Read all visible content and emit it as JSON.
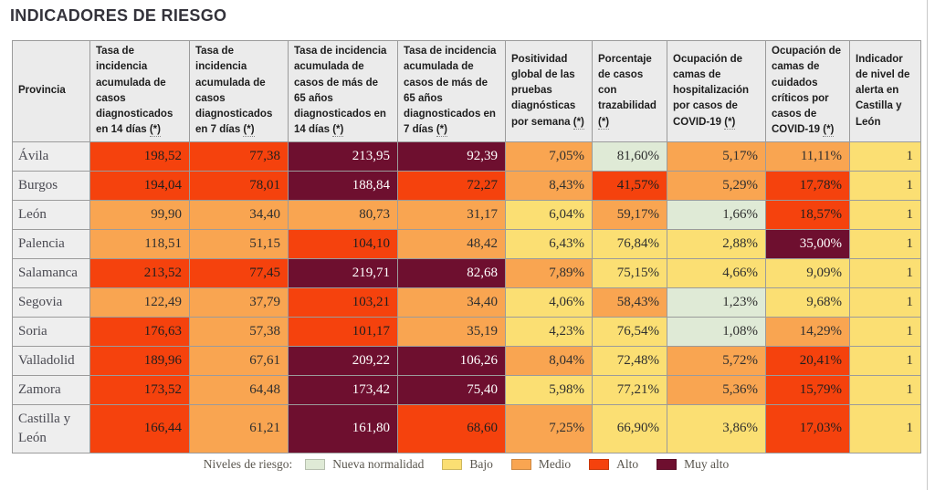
{
  "title": "INDICADORES DE RIESGO",
  "colors": {
    "nueva_normalidad": {
      "bg": "#dfead6",
      "text": "#2f2f2f"
    },
    "bajo": {
      "bg": "#fbdf73",
      "text": "#2f2f2f"
    },
    "medio": {
      "bg": "#f9a551",
      "text": "#2f2f2f"
    },
    "alto": {
      "bg": "#f5420d",
      "text": "#1f1f1f"
    },
    "muy_alto": {
      "bg": "#6e0f2f",
      "text": "#ffffff"
    }
  },
  "table": {
    "province_header": "Provincia",
    "columns": [
      {
        "label": "Tasa de incidencia acumulada de casos diagnosticados en 14 días",
        "star": "(*)"
      },
      {
        "label": "Tasa de incidencia acumulada de casos diagnosticados en 7 días",
        "star": "(*)"
      },
      {
        "label": "Tasa de incidencia acumulada de casos de más de 65 años diagnosticados en 14 días",
        "star": "(*)"
      },
      {
        "label": "Tasa de incidencia acumulada de casos de más de 65 años diagnosticados en 7 días",
        "star": "(*)"
      },
      {
        "label": "Positividad global de las pruebas diagnósticas por semana",
        "star": "(*)"
      },
      {
        "label": "Porcentaje de casos con trazabilidad",
        "star": "(*)"
      },
      {
        "label": "Ocupación de camas de hospitalización por casos de COVID-19",
        "star": "(*)"
      },
      {
        "label": "Ocupación de camas de cuidados críticos por casos de COVID-19",
        "star": "(*)"
      },
      {
        "label": "Indicador de nivel de alerta en Castilla y León",
        "star": ""
      }
    ],
    "rows": [
      {
        "province": "Ávila",
        "cells": [
          {
            "v": "198,52",
            "l": "alto"
          },
          {
            "v": "77,38",
            "l": "alto"
          },
          {
            "v": "213,95",
            "l": "muy_alto"
          },
          {
            "v": "92,39",
            "l": "muy_alto"
          },
          {
            "v": "7,05%",
            "l": "medio"
          },
          {
            "v": "81,60%",
            "l": "nueva_normalidad"
          },
          {
            "v": "5,17%",
            "l": "medio"
          },
          {
            "v": "11,11%",
            "l": "medio"
          },
          {
            "v": "1",
            "l": "bajo"
          }
        ]
      },
      {
        "province": "Burgos",
        "cells": [
          {
            "v": "194,04",
            "l": "alto"
          },
          {
            "v": "78,01",
            "l": "alto"
          },
          {
            "v": "188,84",
            "l": "muy_alto"
          },
          {
            "v": "72,27",
            "l": "alto"
          },
          {
            "v": "8,43%",
            "l": "medio"
          },
          {
            "v": "41,57%",
            "l": "alto"
          },
          {
            "v": "5,29%",
            "l": "medio"
          },
          {
            "v": "17,78%",
            "l": "alto"
          },
          {
            "v": "1",
            "l": "bajo"
          }
        ]
      },
      {
        "province": "León",
        "cells": [
          {
            "v": "99,90",
            "l": "medio"
          },
          {
            "v": "34,40",
            "l": "medio"
          },
          {
            "v": "80,73",
            "l": "medio"
          },
          {
            "v": "31,17",
            "l": "medio"
          },
          {
            "v": "6,04%",
            "l": "bajo"
          },
          {
            "v": "59,17%",
            "l": "medio"
          },
          {
            "v": "1,66%",
            "l": "nueva_normalidad"
          },
          {
            "v": "18,57%",
            "l": "alto"
          },
          {
            "v": "1",
            "l": "bajo"
          }
        ]
      },
      {
        "province": "Palencia",
        "cells": [
          {
            "v": "118,51",
            "l": "medio"
          },
          {
            "v": "51,15",
            "l": "medio"
          },
          {
            "v": "104,10",
            "l": "alto"
          },
          {
            "v": "48,42",
            "l": "medio"
          },
          {
            "v": "6,43%",
            "l": "bajo"
          },
          {
            "v": "76,84%",
            "l": "bajo"
          },
          {
            "v": "2,88%",
            "l": "bajo"
          },
          {
            "v": "35,00%",
            "l": "muy_alto"
          },
          {
            "v": "1",
            "l": "bajo"
          }
        ]
      },
      {
        "province": "Salamanca",
        "cells": [
          {
            "v": "213,52",
            "l": "alto"
          },
          {
            "v": "77,45",
            "l": "alto"
          },
          {
            "v": "219,71",
            "l": "muy_alto"
          },
          {
            "v": "82,68",
            "l": "muy_alto"
          },
          {
            "v": "7,89%",
            "l": "medio"
          },
          {
            "v": "75,15%",
            "l": "bajo"
          },
          {
            "v": "4,66%",
            "l": "bajo"
          },
          {
            "v": "9,09%",
            "l": "bajo"
          },
          {
            "v": "1",
            "l": "bajo"
          }
        ]
      },
      {
        "province": "Segovia",
        "cells": [
          {
            "v": "122,49",
            "l": "medio"
          },
          {
            "v": "37,79",
            "l": "medio"
          },
          {
            "v": "103,21",
            "l": "alto"
          },
          {
            "v": "34,40",
            "l": "medio"
          },
          {
            "v": "4,06%",
            "l": "bajo"
          },
          {
            "v": "58,43%",
            "l": "medio"
          },
          {
            "v": "1,23%",
            "l": "nueva_normalidad"
          },
          {
            "v": "9,68%",
            "l": "bajo"
          },
          {
            "v": "1",
            "l": "bajo"
          }
        ]
      },
      {
        "province": "Soria",
        "cells": [
          {
            "v": "176,63",
            "l": "alto"
          },
          {
            "v": "57,38",
            "l": "medio"
          },
          {
            "v": "101,17",
            "l": "alto"
          },
          {
            "v": "35,19",
            "l": "medio"
          },
          {
            "v": "4,23%",
            "l": "bajo"
          },
          {
            "v": "76,54%",
            "l": "bajo"
          },
          {
            "v": "1,08%",
            "l": "nueva_normalidad"
          },
          {
            "v": "14,29%",
            "l": "medio"
          },
          {
            "v": "1",
            "l": "bajo"
          }
        ]
      },
      {
        "province": "Valladolid",
        "cells": [
          {
            "v": "189,96",
            "l": "alto"
          },
          {
            "v": "67,61",
            "l": "medio"
          },
          {
            "v": "209,22",
            "l": "muy_alto"
          },
          {
            "v": "106,26",
            "l": "muy_alto"
          },
          {
            "v": "8,04%",
            "l": "medio"
          },
          {
            "v": "72,48%",
            "l": "bajo"
          },
          {
            "v": "5,72%",
            "l": "medio"
          },
          {
            "v": "20,41%",
            "l": "alto"
          },
          {
            "v": "1",
            "l": "bajo"
          }
        ]
      },
      {
        "province": "Zamora",
        "cells": [
          {
            "v": "173,52",
            "l": "alto"
          },
          {
            "v": "64,48",
            "l": "medio"
          },
          {
            "v": "173,42",
            "l": "muy_alto"
          },
          {
            "v": "75,40",
            "l": "muy_alto"
          },
          {
            "v": "5,98%",
            "l": "bajo"
          },
          {
            "v": "77,21%",
            "l": "bajo"
          },
          {
            "v": "5,36%",
            "l": "medio"
          },
          {
            "v": "15,79%",
            "l": "alto"
          },
          {
            "v": "1",
            "l": "bajo"
          }
        ]
      },
      {
        "province": "Castilla y León",
        "cells": [
          {
            "v": "166,44",
            "l": "alto"
          },
          {
            "v": "61,21",
            "l": "medio"
          },
          {
            "v": "161,80",
            "l": "muy_alto"
          },
          {
            "v": "68,60",
            "l": "alto"
          },
          {
            "v": "7,25%",
            "l": "medio"
          },
          {
            "v": "66,90%",
            "l": "bajo"
          },
          {
            "v": "3,86%",
            "l": "bajo"
          },
          {
            "v": "17,03%",
            "l": "alto"
          },
          {
            "v": "1",
            "l": "bajo"
          }
        ]
      }
    ]
  },
  "legend": {
    "label": "Niveles de riesgo:",
    "items": [
      {
        "label": "Nueva normalidad",
        "level": "nueva_normalidad"
      },
      {
        "label": "Bajo",
        "level": "bajo"
      },
      {
        "label": "Medio",
        "level": "medio"
      },
      {
        "label": "Alto",
        "level": "alto"
      },
      {
        "label": "Muy alto",
        "level": "muy_alto"
      }
    ]
  }
}
